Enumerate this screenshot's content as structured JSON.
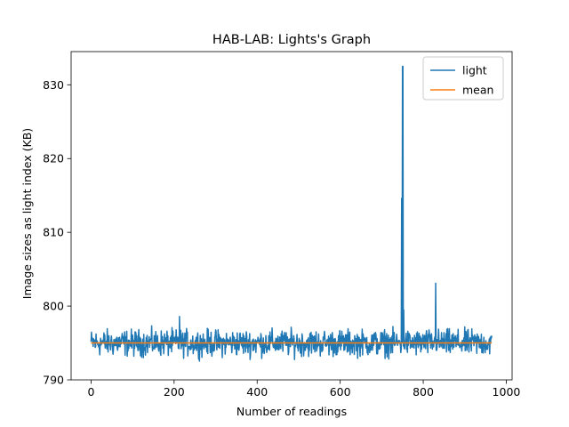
{
  "chart_data": {
    "type": "line",
    "title": "HAB-LAB: Lights's Graph",
    "xlabel": "Number of readings",
    "ylabel": "Image sizes as light index (KB)",
    "xlim": [
      -48,
      1014
    ],
    "ylim": [
      790,
      834.5
    ],
    "x_ticks": [
      0,
      200,
      400,
      600,
      800,
      1000
    ],
    "y_ticks": [
      790,
      800,
      810,
      820,
      830
    ],
    "grid": false,
    "legend_position": "top-right",
    "series": [
      {
        "name": "light",
        "color": "#1f77b4",
        "sample_count": 966,
        "baseline": 795.0,
        "noise_range": [
          791.5,
          798.5
        ],
        "peaks": [
          {
            "x": 748,
            "y": 814.6
          },
          {
            "x": 750,
            "y": 832.5
          },
          {
            "x": 751,
            "y": 832.5
          },
          {
            "x": 753,
            "y": 799.5
          },
          {
            "x": 830,
            "y": 803.1
          },
          {
            "x": 213,
            "y": 798.6
          }
        ]
      },
      {
        "name": "mean",
        "color": "#ff7f0e",
        "x": [
          0,
          965
        ],
        "y": [
          795.0,
          795.0
        ]
      }
    ]
  }
}
